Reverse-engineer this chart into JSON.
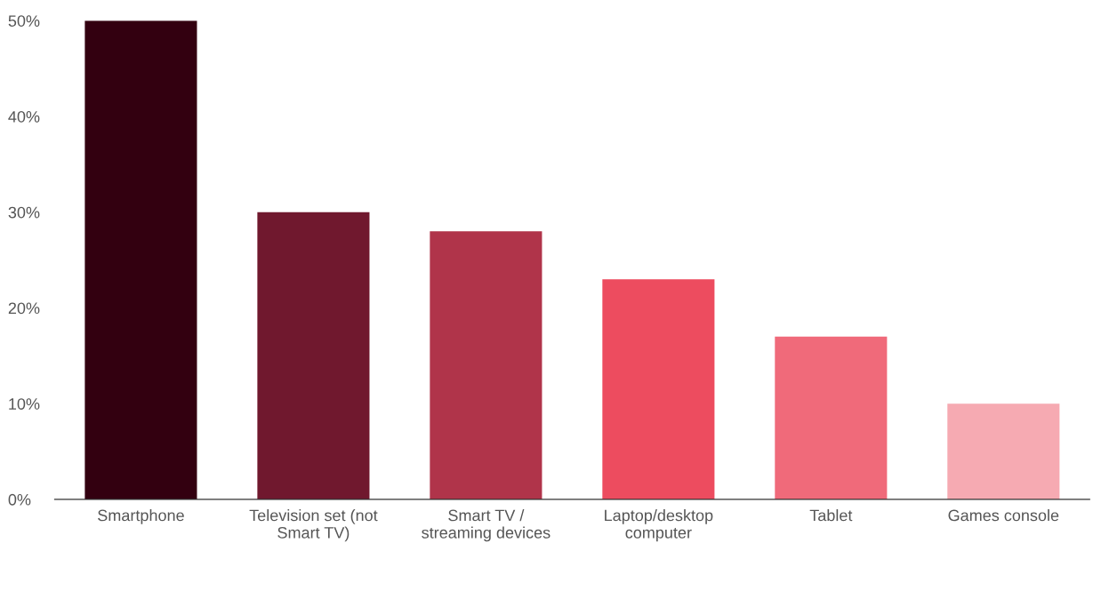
{
  "chart_data": {
    "type": "bar",
    "categories": [
      "Smartphone",
      "Television set (not Smart TV)",
      "Smart TV / streaming devices",
      "Laptop/desktop computer",
      "Tablet",
      "Games console"
    ],
    "values": [
      50,
      30,
      28,
      23,
      17,
      10
    ],
    "colors": [
      "#330010",
      "#70182e",
      "#b0344a",
      "#ed4c5f",
      "#f06a7a",
      "#f6aab2"
    ],
    "ylim": [
      0,
      50
    ],
    "yticks": [
      {
        "value": 0,
        "label": "0%"
      },
      {
        "value": 10,
        "label": "10%"
      },
      {
        "value": 20,
        "label": "20%"
      },
      {
        "value": 30,
        "label": "30%"
      },
      {
        "value": 40,
        "label": "40%"
      },
      {
        "value": 50,
        "label": "50%"
      }
    ],
    "grid": false,
    "legend": false
  }
}
